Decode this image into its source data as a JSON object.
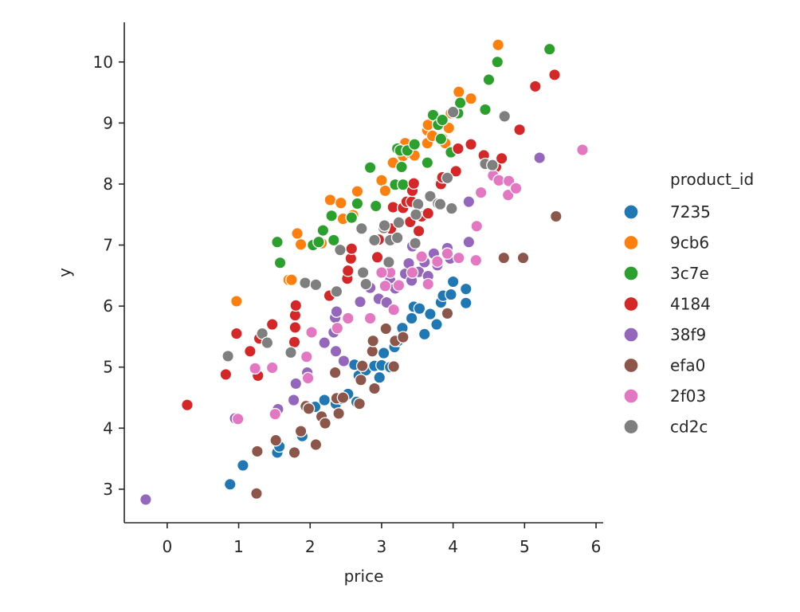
{
  "chart_data": {
    "type": "scatter",
    "xlabel": "price",
    "ylabel": "y",
    "xlim": [
      -0.6,
      6.1
    ],
    "ylim": [
      2.45,
      10.65
    ],
    "x_ticks": [
      0,
      1,
      2,
      3,
      4,
      5,
      6
    ],
    "y_ticks": [
      3,
      4,
      5,
      6,
      7,
      8,
      9,
      10
    ],
    "grid": false,
    "legend": {
      "title": "product_id",
      "placement": "right"
    },
    "series": [
      {
        "name": "7235",
        "color": "#1f77b4",
        "points": [
          [
            0.88,
            3.08
          ],
          [
            1.06,
            3.39
          ],
          [
            1.54,
            3.6
          ],
          [
            1.57,
            3.7
          ],
          [
            1.89,
            3.87
          ],
          [
            2.07,
            4.35
          ],
          [
            2.2,
            4.46
          ],
          [
            2.36,
            4.4
          ],
          [
            2.44,
            4.48
          ],
          [
            2.53,
            4.56
          ],
          [
            2.62,
            5.04
          ],
          [
            2.65,
            4.43
          ],
          [
            2.68,
            4.86
          ],
          [
            2.78,
            4.95
          ],
          [
            2.9,
            5.02
          ],
          [
            2.97,
            4.83
          ],
          [
            3.0,
            5.03
          ],
          [
            3.03,
            5.23
          ],
          [
            3.12,
            5.0
          ],
          [
            3.18,
            5.33
          ],
          [
            3.23,
            5.43
          ],
          [
            3.29,
            5.64
          ],
          [
            3.42,
            5.8
          ],
          [
            3.45,
            5.99
          ],
          [
            3.53,
            5.96
          ],
          [
            3.6,
            5.54
          ],
          [
            3.68,
            5.87
          ],
          [
            3.77,
            5.7
          ],
          [
            3.83,
            6.06
          ],
          [
            3.86,
            6.17
          ],
          [
            3.97,
            6.19
          ],
          [
            4.0,
            6.4
          ],
          [
            4.18,
            6.05
          ],
          [
            4.18,
            6.28
          ]
        ]
      },
      {
        "name": "9cb6",
        "color": "#ff7f0e",
        "points": [
          [
            0.97,
            6.08
          ],
          [
            1.7,
            6.43
          ],
          [
            1.74,
            6.43
          ],
          [
            1.82,
            7.19
          ],
          [
            1.87,
            7.01
          ],
          [
            2.16,
            7.03
          ],
          [
            2.28,
            7.74
          ],
          [
            2.43,
            7.69
          ],
          [
            2.46,
            7.43
          ],
          [
            2.6,
            7.49
          ],
          [
            2.66,
            7.88
          ],
          [
            3.0,
            8.06
          ],
          [
            3.05,
            7.89
          ],
          [
            3.16,
            8.35
          ],
          [
            3.3,
            8.46
          ],
          [
            3.33,
            8.67
          ],
          [
            3.4,
            8.51
          ],
          [
            3.46,
            8.47
          ],
          [
            3.64,
            8.67
          ],
          [
            3.64,
            8.88
          ],
          [
            3.65,
            8.97
          ],
          [
            3.71,
            8.79
          ],
          [
            3.79,
            8.98
          ],
          [
            3.85,
            8.75
          ],
          [
            3.89,
            8.67
          ],
          [
            3.94,
            8.92
          ],
          [
            3.97,
            9.16
          ],
          [
            4.08,
            9.51
          ],
          [
            4.25,
            9.4
          ],
          [
            4.63,
            10.28
          ]
        ]
      },
      {
        "name": "3c7e",
        "color": "#2ca02c",
        "points": [
          [
            1.54,
            7.05
          ],
          [
            1.58,
            6.71
          ],
          [
            2.04,
            7.0
          ],
          [
            2.12,
            7.05
          ],
          [
            2.18,
            7.24
          ],
          [
            2.3,
            7.48
          ],
          [
            2.33,
            7.08
          ],
          [
            2.58,
            7.45
          ],
          [
            2.66,
            7.68
          ],
          [
            2.84,
            8.27
          ],
          [
            2.92,
            7.64
          ],
          [
            3.19,
            7.99
          ],
          [
            3.22,
            8.58
          ],
          [
            3.26,
            8.55
          ],
          [
            3.28,
            8.28
          ],
          [
            3.36,
            8.55
          ],
          [
            3.46,
            8.65
          ],
          [
            3.64,
            8.35
          ],
          [
            3.72,
            9.13
          ],
          [
            3.79,
            8.97
          ],
          [
            3.83,
            8.74
          ],
          [
            3.97,
            8.52
          ],
          [
            4.07,
            9.16
          ],
          [
            4.1,
            9.33
          ],
          [
            4.45,
            9.22
          ],
          [
            4.5,
            9.71
          ],
          [
            4.62,
            10.0
          ],
          [
            5.35,
            10.21
          ],
          [
            3.85,
            9.05
          ],
          [
            3.3,
            7.99
          ]
        ]
      },
      {
        "name": "4184",
        "color": "#d62728",
        "points": [
          [
            0.28,
            4.38
          ],
          [
            0.82,
            4.88
          ],
          [
            0.97,
            5.55
          ],
          [
            1.16,
            5.26
          ],
          [
            1.27,
            4.86
          ],
          [
            1.29,
            5.47
          ],
          [
            1.47,
            5.7
          ],
          [
            1.78,
            5.41
          ],
          [
            1.79,
            5.65
          ],
          [
            1.79,
            5.85
          ],
          [
            1.8,
            6.01
          ],
          [
            2.27,
            6.17
          ],
          [
            2.52,
            6.45
          ],
          [
            2.53,
            6.58
          ],
          [
            2.57,
            6.78
          ],
          [
            2.58,
            6.94
          ],
          [
            2.94,
            6.8
          ],
          [
            2.96,
            7.09
          ],
          [
            3.13,
            7.27
          ],
          [
            3.16,
            7.62
          ],
          [
            3.3,
            7.61
          ],
          [
            3.35,
            7.71
          ],
          [
            3.4,
            7.38
          ],
          [
            3.42,
            7.71
          ],
          [
            3.43,
            7.89
          ],
          [
            3.45,
            8.01
          ],
          [
            3.52,
            7.23
          ],
          [
            3.56,
            7.47
          ],
          [
            3.65,
            7.52
          ],
          [
            3.83,
            8.0
          ],
          [
            3.85,
            8.11
          ],
          [
            4.04,
            8.21
          ],
          [
            4.07,
            8.58
          ],
          [
            4.25,
            8.65
          ],
          [
            4.43,
            8.47
          ],
          [
            4.6,
            8.28
          ],
          [
            4.68,
            8.42
          ],
          [
            4.93,
            8.89
          ],
          [
            5.15,
            9.6
          ],
          [
            5.42,
            9.79
          ]
        ]
      },
      {
        "name": "38f9",
        "color": "#9467bd",
        "points": [
          [
            -0.3,
            2.83
          ],
          [
            0.95,
            4.16
          ],
          [
            1.55,
            4.31
          ],
          [
            1.77,
            4.46
          ],
          [
            1.8,
            4.73
          ],
          [
            1.96,
            4.91
          ],
          [
            2.2,
            5.4
          ],
          [
            2.33,
            5.57
          ],
          [
            2.35,
            5.81
          ],
          [
            2.37,
            5.91
          ],
          [
            2.36,
            5.26
          ],
          [
            2.47,
            5.1
          ],
          [
            2.7,
            6.07
          ],
          [
            2.84,
            6.3
          ],
          [
            2.96,
            6.12
          ],
          [
            3.07,
            6.06
          ],
          [
            3.12,
            6.42
          ],
          [
            3.19,
            6.29
          ],
          [
            3.33,
            6.53
          ],
          [
            3.38,
            6.7
          ],
          [
            3.42,
            6.42
          ],
          [
            3.43,
            6.98
          ],
          [
            3.52,
            6.56
          ],
          [
            3.6,
            6.72
          ],
          [
            3.65,
            6.49
          ],
          [
            3.73,
            6.86
          ],
          [
            3.78,
            6.67
          ],
          [
            3.92,
            6.95
          ],
          [
            3.96,
            6.78
          ],
          [
            4.22,
            7.05
          ],
          [
            4.22,
            7.71
          ],
          [
            5.21,
            8.43
          ]
        ]
      },
      {
        "name": "efa0",
        "color": "#8c564b",
        "points": [
          [
            1.25,
            2.93
          ],
          [
            1.26,
            3.62
          ],
          [
            1.52,
            3.8
          ],
          [
            1.78,
            3.6
          ],
          [
            1.87,
            3.95
          ],
          [
            1.94,
            4.36
          ],
          [
            1.98,
            4.32
          ],
          [
            2.08,
            3.73
          ],
          [
            2.16,
            4.19
          ],
          [
            2.21,
            4.08
          ],
          [
            2.35,
            4.91
          ],
          [
            2.37,
            4.49
          ],
          [
            2.4,
            4.24
          ],
          [
            2.46,
            4.5
          ],
          [
            2.69,
            4.4
          ],
          [
            2.71,
            4.79
          ],
          [
            2.73,
            5.02
          ],
          [
            2.87,
            5.26
          ],
          [
            2.88,
            5.43
          ],
          [
            2.9,
            4.65
          ],
          [
            3.06,
            5.63
          ],
          [
            3.17,
            5.01
          ],
          [
            3.19,
            5.43
          ],
          [
            3.3,
            5.49
          ],
          [
            3.92,
            5.88
          ],
          [
            4.71,
            6.79
          ],
          [
            4.98,
            6.79
          ],
          [
            5.44,
            7.47
          ]
        ]
      },
      {
        "name": "2f03",
        "color": "#e377c2",
        "points": [
          [
            0.99,
            4.15
          ],
          [
            1.23,
            4.98
          ],
          [
            1.47,
            4.99
          ],
          [
            1.51,
            4.23
          ],
          [
            1.95,
            5.17
          ],
          [
            1.97,
            4.82
          ],
          [
            2.02,
            5.57
          ],
          [
            2.38,
            5.64
          ],
          [
            2.53,
            5.8
          ],
          [
            2.84,
            5.8
          ],
          [
            3.05,
            6.33
          ],
          [
            3.12,
            6.55
          ],
          [
            3.17,
            5.94
          ],
          [
            3.24,
            6.34
          ],
          [
            3.43,
            6.55
          ],
          [
            3.56,
            6.81
          ],
          [
            3.65,
            6.36
          ],
          [
            3.78,
            6.73
          ],
          [
            3.92,
            6.86
          ],
          [
            4.08,
            6.79
          ],
          [
            4.32,
            6.75
          ],
          [
            4.33,
            7.31
          ],
          [
            4.39,
            7.86
          ],
          [
            4.56,
            8.14
          ],
          [
            4.64,
            8.06
          ],
          [
            4.77,
            7.82
          ],
          [
            4.78,
            8.05
          ],
          [
            4.88,
            7.93
          ],
          [
            5.81,
            8.56
          ],
          [
            3.0,
            6.55
          ]
        ]
      },
      {
        "name": "cd2c",
        "color": "#7f7f7f",
        "points": [
          [
            0.85,
            5.18
          ],
          [
            1.33,
            5.55
          ],
          [
            1.4,
            5.4
          ],
          [
            1.73,
            5.24
          ],
          [
            1.93,
            6.38
          ],
          [
            2.08,
            6.35
          ],
          [
            2.37,
            6.24
          ],
          [
            2.42,
            6.92
          ],
          [
            2.72,
            7.27
          ],
          [
            2.74,
            6.55
          ],
          [
            2.78,
            6.36
          ],
          [
            2.9,
            7.08
          ],
          [
            3.03,
            7.28
          ],
          [
            3.04,
            7.32
          ],
          [
            3.1,
            6.72
          ],
          [
            3.12,
            7.08
          ],
          [
            3.22,
            7.12
          ],
          [
            3.24,
            7.37
          ],
          [
            3.47,
            7.03
          ],
          [
            3.51,
            7.67
          ],
          [
            3.68,
            7.8
          ],
          [
            3.79,
            7.68
          ],
          [
            3.82,
            7.67
          ],
          [
            3.98,
            7.6
          ],
          [
            3.92,
            8.1
          ],
          [
            4.0,
            9.18
          ],
          [
            4.45,
            8.33
          ],
          [
            4.55,
            8.31
          ],
          [
            4.72,
            9.11
          ],
          [
            3.48,
            7.5
          ]
        ]
      }
    ]
  }
}
